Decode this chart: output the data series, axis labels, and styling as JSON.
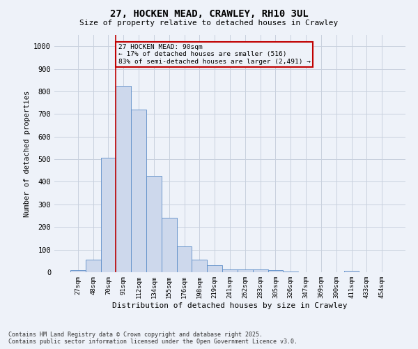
{
  "title_line1": "27, HOCKEN MEAD, CRAWLEY, RH10 3UL",
  "title_line2": "Size of property relative to detached houses in Crawley",
  "xlabel": "Distribution of detached houses by size in Crawley",
  "ylabel": "Number of detached properties",
  "categories": [
    "27sqm",
    "48sqm",
    "70sqm",
    "91sqm",
    "112sqm",
    "134sqm",
    "155sqm",
    "176sqm",
    "198sqm",
    "219sqm",
    "241sqm",
    "262sqm",
    "283sqm",
    "305sqm",
    "326sqm",
    "347sqm",
    "369sqm",
    "390sqm",
    "411sqm",
    "433sqm",
    "454sqm"
  ],
  "values": [
    10,
    57,
    505,
    825,
    720,
    425,
    240,
    115,
    55,
    30,
    13,
    12,
    12,
    8,
    3,
    0,
    0,
    0,
    5,
    0,
    0
  ],
  "bar_color": "#cdd8ec",
  "bar_edge_color": "#5b8cc8",
  "grid_color": "#c8d0de",
  "annotation_line1": "27 HOCKEN MEAD: 90sqm",
  "annotation_line2": "← 17% of detached houses are smaller (516)",
  "annotation_line3": "83% of semi-detached houses are larger (2,491) →",
  "vline_color": "#c00000",
  "annotation_box_color": "#c00000",
  "ylim": [
    0,
    1050
  ],
  "yticks": [
    0,
    100,
    200,
    300,
    400,
    500,
    600,
    700,
    800,
    900,
    1000
  ],
  "footnote_line1": "Contains HM Land Registry data © Crown copyright and database right 2025.",
  "footnote_line2": "Contains public sector information licensed under the Open Government Licence v3.0.",
  "background_color": "#eef2f9"
}
